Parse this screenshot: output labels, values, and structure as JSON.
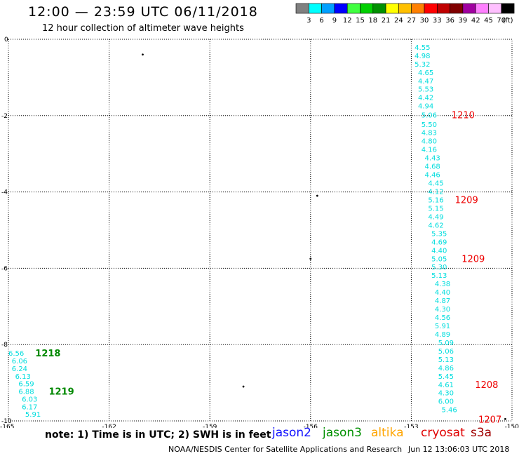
{
  "header": {
    "title": "12:00 — 23:59 UTC 06/11/2018",
    "subtitle": "12 hour collection of altimeter wave heights"
  },
  "color_scale": {
    "unit": "(ft)",
    "bins": [
      {
        "color": "#808080",
        "label": "3"
      },
      {
        "color": "#00ffff",
        "label": "6"
      },
      {
        "color": "#00a0ff",
        "label": "9"
      },
      {
        "color": "#0000ff",
        "label": "12"
      },
      {
        "color": "#40ff40",
        "label": "15"
      },
      {
        "color": "#00d000",
        "label": "18"
      },
      {
        "color": "#009000",
        "label": "21"
      },
      {
        "color": "#ffff00",
        "label": "24"
      },
      {
        "color": "#ffc000",
        "label": "27"
      },
      {
        "color": "#ff8000",
        "label": "30"
      },
      {
        "color": "#ff0000",
        "label": "33"
      },
      {
        "color": "#c00000",
        "label": "36"
      },
      {
        "color": "#800000",
        "label": "39"
      },
      {
        "color": "#a000a0",
        "label": "42"
      },
      {
        "color": "#ff80ff",
        "label": "45"
      },
      {
        "color": "#ffc0ff",
        "label": "70"
      },
      {
        "color": "#000000",
        "label": ""
      }
    ]
  },
  "map": {
    "x_ticks": [
      "-165",
      "-162",
      "-159",
      "-156",
      "-153",
      "-150"
    ],
    "y_ticks": [
      "0",
      "-2",
      "-4",
      "-6",
      "-8",
      "-10"
    ],
    "xlim": [
      -165,
      -150
    ],
    "ylim": [
      -10,
      0
    ]
  },
  "tracks": [
    {
      "name": "main-track",
      "color": "#00dddd",
      "points": [
        {
          "lon": -152.9,
          "lat": -0.2,
          "value": "4.55"
        },
        {
          "lon": -152.9,
          "lat": -0.42,
          "value": "4.98"
        },
        {
          "lon": -152.9,
          "lat": -0.64,
          "value": "5.32"
        },
        {
          "lon": -152.8,
          "lat": -0.86,
          "value": "4.65"
        },
        {
          "lon": -152.8,
          "lat": -1.08,
          "value": "4.47"
        },
        {
          "lon": -152.8,
          "lat": -1.3,
          "value": "5.53"
        },
        {
          "lon": -152.8,
          "lat": -1.52,
          "value": "4.42"
        },
        {
          "lon": -152.8,
          "lat": -1.74,
          "value": "4.94"
        },
        {
          "lon": -152.7,
          "lat": -1.98,
          "value": "5.06"
        },
        {
          "lon": -152.7,
          "lat": -2.22,
          "value": "5.50"
        },
        {
          "lon": -152.7,
          "lat": -2.44,
          "value": "4.83"
        },
        {
          "lon": -152.7,
          "lat": -2.66,
          "value": "4.80"
        },
        {
          "lon": -152.7,
          "lat": -2.88,
          "value": "4.16"
        },
        {
          "lon": -152.6,
          "lat": -3.1,
          "value": "4.43"
        },
        {
          "lon": -152.6,
          "lat": -3.32,
          "value": "4.68"
        },
        {
          "lon": -152.6,
          "lat": -3.54,
          "value": "4.46"
        },
        {
          "lon": -152.5,
          "lat": -3.76,
          "value": "4.45"
        },
        {
          "lon": -152.5,
          "lat": -3.98,
          "value": "4.12"
        },
        {
          "lon": -152.5,
          "lat": -4.2,
          "value": "5.16"
        },
        {
          "lon": -152.5,
          "lat": -4.42,
          "value": "5.15"
        },
        {
          "lon": -152.5,
          "lat": -4.64,
          "value": "4.49"
        },
        {
          "lon": -152.5,
          "lat": -4.86,
          "value": "4.62"
        },
        {
          "lon": -152.4,
          "lat": -5.08,
          "value": "5.35"
        },
        {
          "lon": -152.4,
          "lat": -5.3,
          "value": "4.69"
        },
        {
          "lon": -152.4,
          "lat": -5.52,
          "value": "4.40"
        },
        {
          "lon": -152.4,
          "lat": -5.74,
          "value": "5.05"
        },
        {
          "lon": -152.4,
          "lat": -5.96,
          "value": "5.30"
        },
        {
          "lon": -152.4,
          "lat": -6.18,
          "value": "5.13"
        },
        {
          "lon": -152.3,
          "lat": -6.4,
          "value": "4.38"
        },
        {
          "lon": -152.3,
          "lat": -6.62,
          "value": "4.40"
        },
        {
          "lon": -152.3,
          "lat": -6.84,
          "value": "4.87"
        },
        {
          "lon": -152.3,
          "lat": -7.06,
          "value": "4.30"
        },
        {
          "lon": -152.3,
          "lat": -7.28,
          "value": "4.56"
        },
        {
          "lon": -152.3,
          "lat": -7.5,
          "value": "5.91"
        },
        {
          "lon": -152.3,
          "lat": -7.72,
          "value": "4.89"
        },
        {
          "lon": -152.2,
          "lat": -7.94,
          "value": "5.09"
        },
        {
          "lon": -152.2,
          "lat": -8.16,
          "value": "5.06"
        },
        {
          "lon": -152.2,
          "lat": -8.38,
          "value": "5.13"
        },
        {
          "lon": -152.2,
          "lat": -8.6,
          "value": "4.86"
        },
        {
          "lon": -152.2,
          "lat": -8.82,
          "value": "5.45"
        },
        {
          "lon": -152.2,
          "lat": -9.04,
          "value": "4.61"
        },
        {
          "lon": -152.2,
          "lat": -9.26,
          "value": "4.30"
        },
        {
          "lon": -152.2,
          "lat": -9.48,
          "value": "6.00"
        },
        {
          "lon": -152.1,
          "lat": -9.7,
          "value": "5.46"
        }
      ]
    },
    {
      "name": "left-track",
      "color": "#00dddd",
      "points": [
        {
          "lon": -165.0,
          "lat": -8.22,
          "value": "6.56"
        },
        {
          "lon": -164.9,
          "lat": -8.42,
          "value": "6.06"
        },
        {
          "lon": -164.9,
          "lat": -8.62,
          "value": "6.24"
        },
        {
          "lon": -164.8,
          "lat": -8.82,
          "value": "6.13"
        },
        {
          "lon": -164.7,
          "lat": -9.02,
          "value": "6.59"
        },
        {
          "lon": -164.7,
          "lat": -9.22,
          "value": "6.88"
        },
        {
          "lon": -164.6,
          "lat": -9.42,
          "value": "6.03"
        },
        {
          "lon": -164.6,
          "lat": -9.62,
          "value": "6.17"
        },
        {
          "lon": -164.5,
          "lat": -9.82,
          "value": "5.91"
        }
      ]
    }
  ],
  "time_labels": [
    {
      "lon": -151.8,
      "lat": -1.98,
      "text": "1210",
      "color": "#ee0000"
    },
    {
      "lon": -151.7,
      "lat": -4.2,
      "text": "1209",
      "color": "#ee0000"
    },
    {
      "lon": -151.5,
      "lat": -5.74,
      "text": "1209",
      "color": "#ee0000"
    },
    {
      "lon": -151.1,
      "lat": -9.04,
      "text": "1208",
      "color": "#ee0000"
    },
    {
      "lon": -151.0,
      "lat": -9.95,
      "text": "1207",
      "color": "#ee0000"
    },
    {
      "lon": -164.2,
      "lat": -8.22,
      "text": "1218",
      "color": "#008800"
    },
    {
      "lon": -163.8,
      "lat": -9.22,
      "text": "1219",
      "color": "#008800"
    }
  ],
  "satellites": [
    {
      "name": "jason2",
      "color": "#1010ff"
    },
    {
      "name": "jason3",
      "color": "#009000"
    },
    {
      "name": "altika",
      "color": "#ffa500"
    },
    {
      "name": "cryosat",
      "color": "#e00000"
    },
    {
      "name": "s3a",
      "color": "#a00000"
    }
  ],
  "footer": {
    "note": "note:  1) Time is in UTC;  2) SWH is in feet",
    "credit": "NOAA/NESDIS Center for Satellite Applications and Research",
    "timestamp": "Jun 12 13:06:03 UTC 2018"
  }
}
